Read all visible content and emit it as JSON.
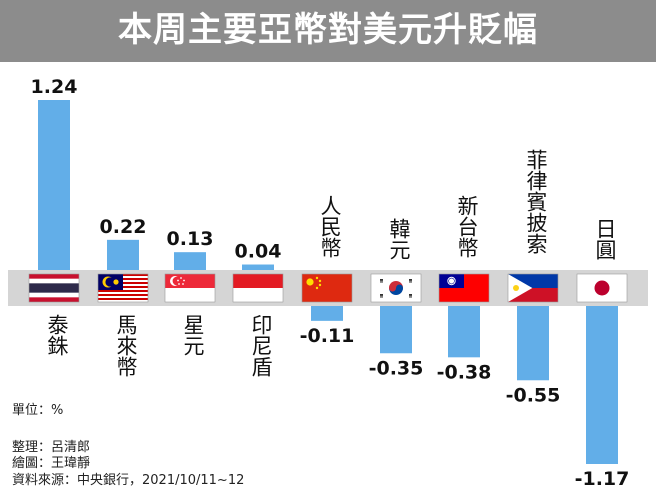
{
  "title": "本周主要亞幣對美元升貶幅",
  "unit_note": "單位：%",
  "credits": {
    "editor": "整理：呂清郎",
    "drawing": "繪圖：王瑋靜",
    "source": "資料來源：中央銀行，2021/10/11~12"
  },
  "colors": {
    "bar": "#62aee8",
    "band": "#d5d5d5",
    "title_bg": "#8c8c8c"
  },
  "chart_data": {
    "type": "bar",
    "title": "本周主要亞幣對美元升貶幅",
    "ylabel": "",
    "unit": "%",
    "categories": [
      "泰銖",
      "馬來幣",
      "星元",
      "印尼盾",
      "人民幣",
      "韓元",
      "新台幣",
      "菲律賓披索",
      "日圓"
    ],
    "values": [
      1.24,
      0.22,
      0.13,
      0.04,
      -0.11,
      -0.35,
      -0.38,
      -0.55,
      -1.17
    ],
    "value_labels": [
      "1.24",
      "0.22",
      "0.13",
      "0.04",
      "-0.11",
      "-0.35",
      "-0.38",
      "-0.55",
      "-1.17"
    ],
    "flags": [
      "thailand-flag",
      "malaysia-flag",
      "singapore-flag",
      "indonesia-flag",
      "china-flag",
      "south-korea-flag",
      "taiwan-flag",
      "philippines-flag",
      "japan-flag"
    ],
    "ylim": [
      -1.17,
      1.24
    ],
    "grid": false,
    "legend": "none"
  }
}
